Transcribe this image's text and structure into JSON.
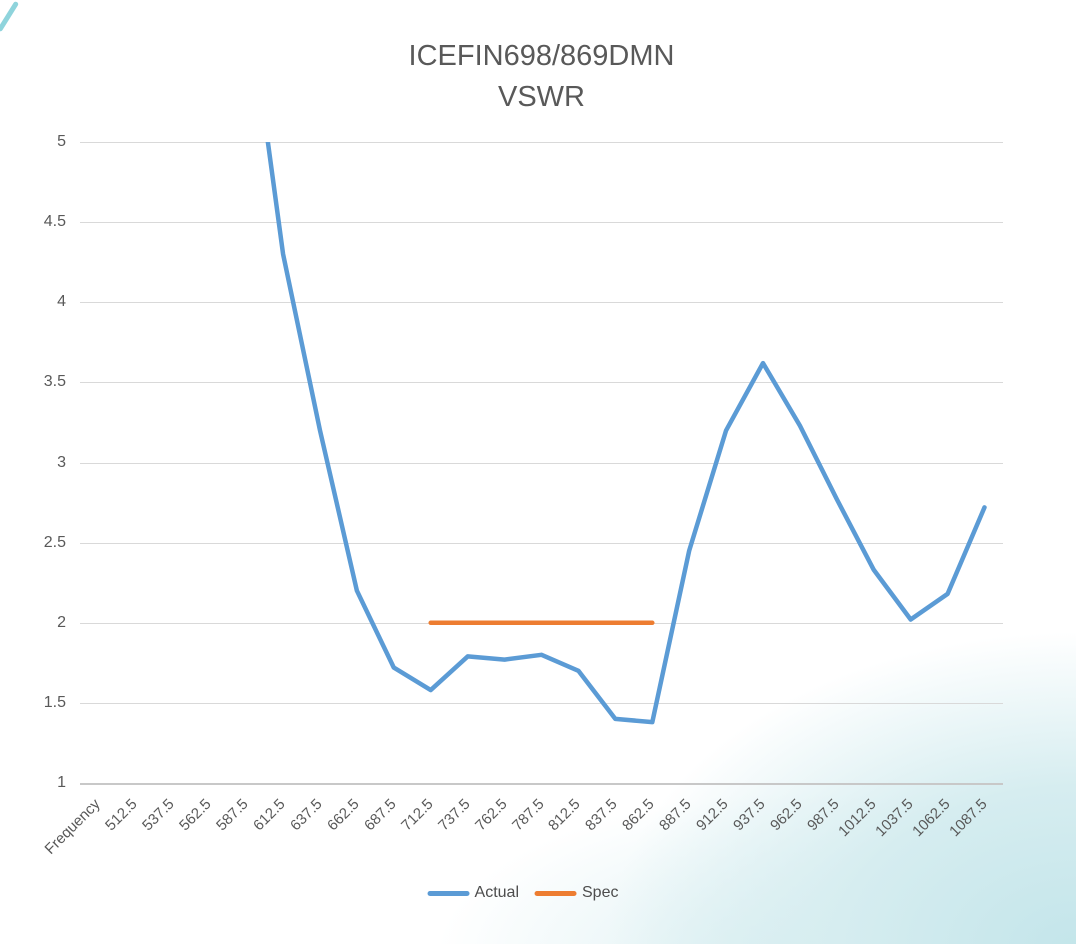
{
  "chart_data": {
    "type": "line",
    "title_lines": [
      "ICEFIN698/869DMN",
      "VSWR"
    ],
    "xlabel": "",
    "ylabel": "",
    "categories": [
      "Frequency",
      "512.5",
      "537.5",
      "562.5",
      "587.5",
      "612.5",
      "637.5",
      "662.5",
      "687.5",
      "712.5",
      "737.5",
      "762.5",
      "787.5",
      "812.5",
      "837.5",
      "862.5",
      "887.5",
      "912.5",
      "937.5",
      "962.5",
      "987.5",
      "1012.5",
      "1037.5",
      "1062.5",
      "1087.5"
    ],
    "series": [
      {
        "name": "Actual",
        "color": "#5B9BD5",
        "values": [
          null,
          null,
          null,
          null,
          6.0,
          4.3,
          3.2,
          2.2,
          1.72,
          1.58,
          1.79,
          1.77,
          1.8,
          1.7,
          1.4,
          1.38,
          2.45,
          3.2,
          3.62,
          3.23,
          2.77,
          2.33,
          2.02,
          2.18,
          2.72
        ]
      },
      {
        "name": "Spec",
        "color": "#ED7D31",
        "values": [
          null,
          null,
          null,
          null,
          null,
          null,
          null,
          null,
          null,
          2,
          2,
          2,
          2,
          2,
          2,
          2,
          null,
          null,
          null,
          null,
          null,
          null,
          null,
          null,
          null
        ]
      }
    ],
    "ylim": [
      1,
      5
    ],
    "ytick_step": 0.5,
    "ytick_labels": [
      "1",
      "1.5",
      "2",
      "2.5",
      "3",
      "3.5",
      "4",
      "4.5",
      "5"
    ],
    "xlabel_rotation_deg": 45,
    "grid": true,
    "legend_position": "bottom",
    "legend": [
      "Actual",
      "Spec"
    ]
  },
  "styles": {
    "text_color": "#595959",
    "gridline_color": "#D9D9D9",
    "axis_line_color": "#C8C8C8",
    "background_accent": "#C8E7EB"
  }
}
